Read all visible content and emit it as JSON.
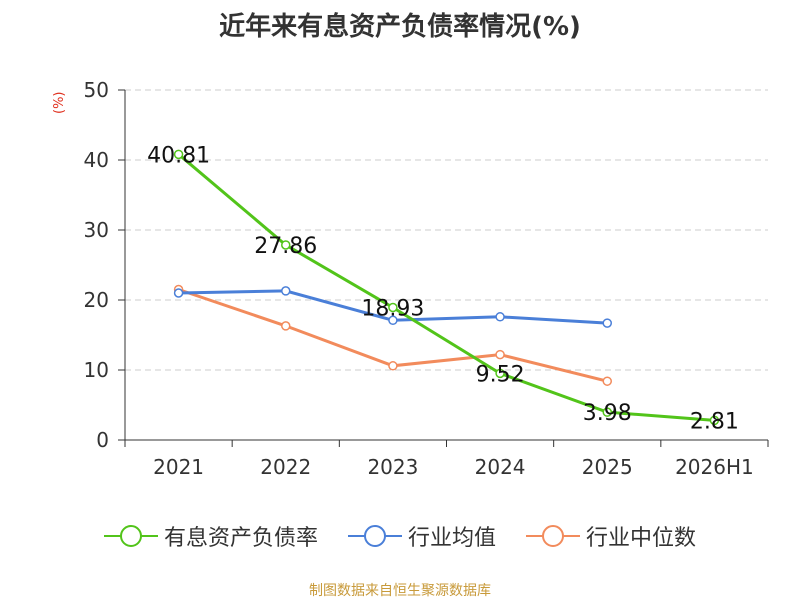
{
  "chart_data": {
    "type": "line",
    "title": "近年来有息资产负债率情况(%)",
    "ylabel": "(%)",
    "xlabel": "",
    "categories": [
      "2021",
      "2022",
      "2023",
      "2024",
      "2025",
      "2026H1"
    ],
    "ylim": [
      0,
      50
    ],
    "yticks": [
      0,
      10,
      20,
      30,
      40,
      50
    ],
    "grid": true,
    "legend_position": "bottom",
    "series": [
      {
        "name": "有息资产负债率",
        "color": "#52c41a",
        "values": [
          40.81,
          27.86,
          18.93,
          9.52,
          3.98,
          2.81
        ],
        "labels": [
          "40.81",
          "27.86",
          "18.93",
          "9.52",
          "3.98",
          "2.81"
        ]
      },
      {
        "name": "行业均值",
        "color": "#4a7fd8",
        "values": [
          21.0,
          21.3,
          17.1,
          17.6,
          16.7,
          null
        ]
      },
      {
        "name": "行业中位数",
        "color": "#f28b5c",
        "values": [
          21.5,
          16.3,
          10.6,
          12.2,
          8.4,
          null
        ]
      }
    ]
  },
  "source": "制图数据来自恒生聚源数据库"
}
